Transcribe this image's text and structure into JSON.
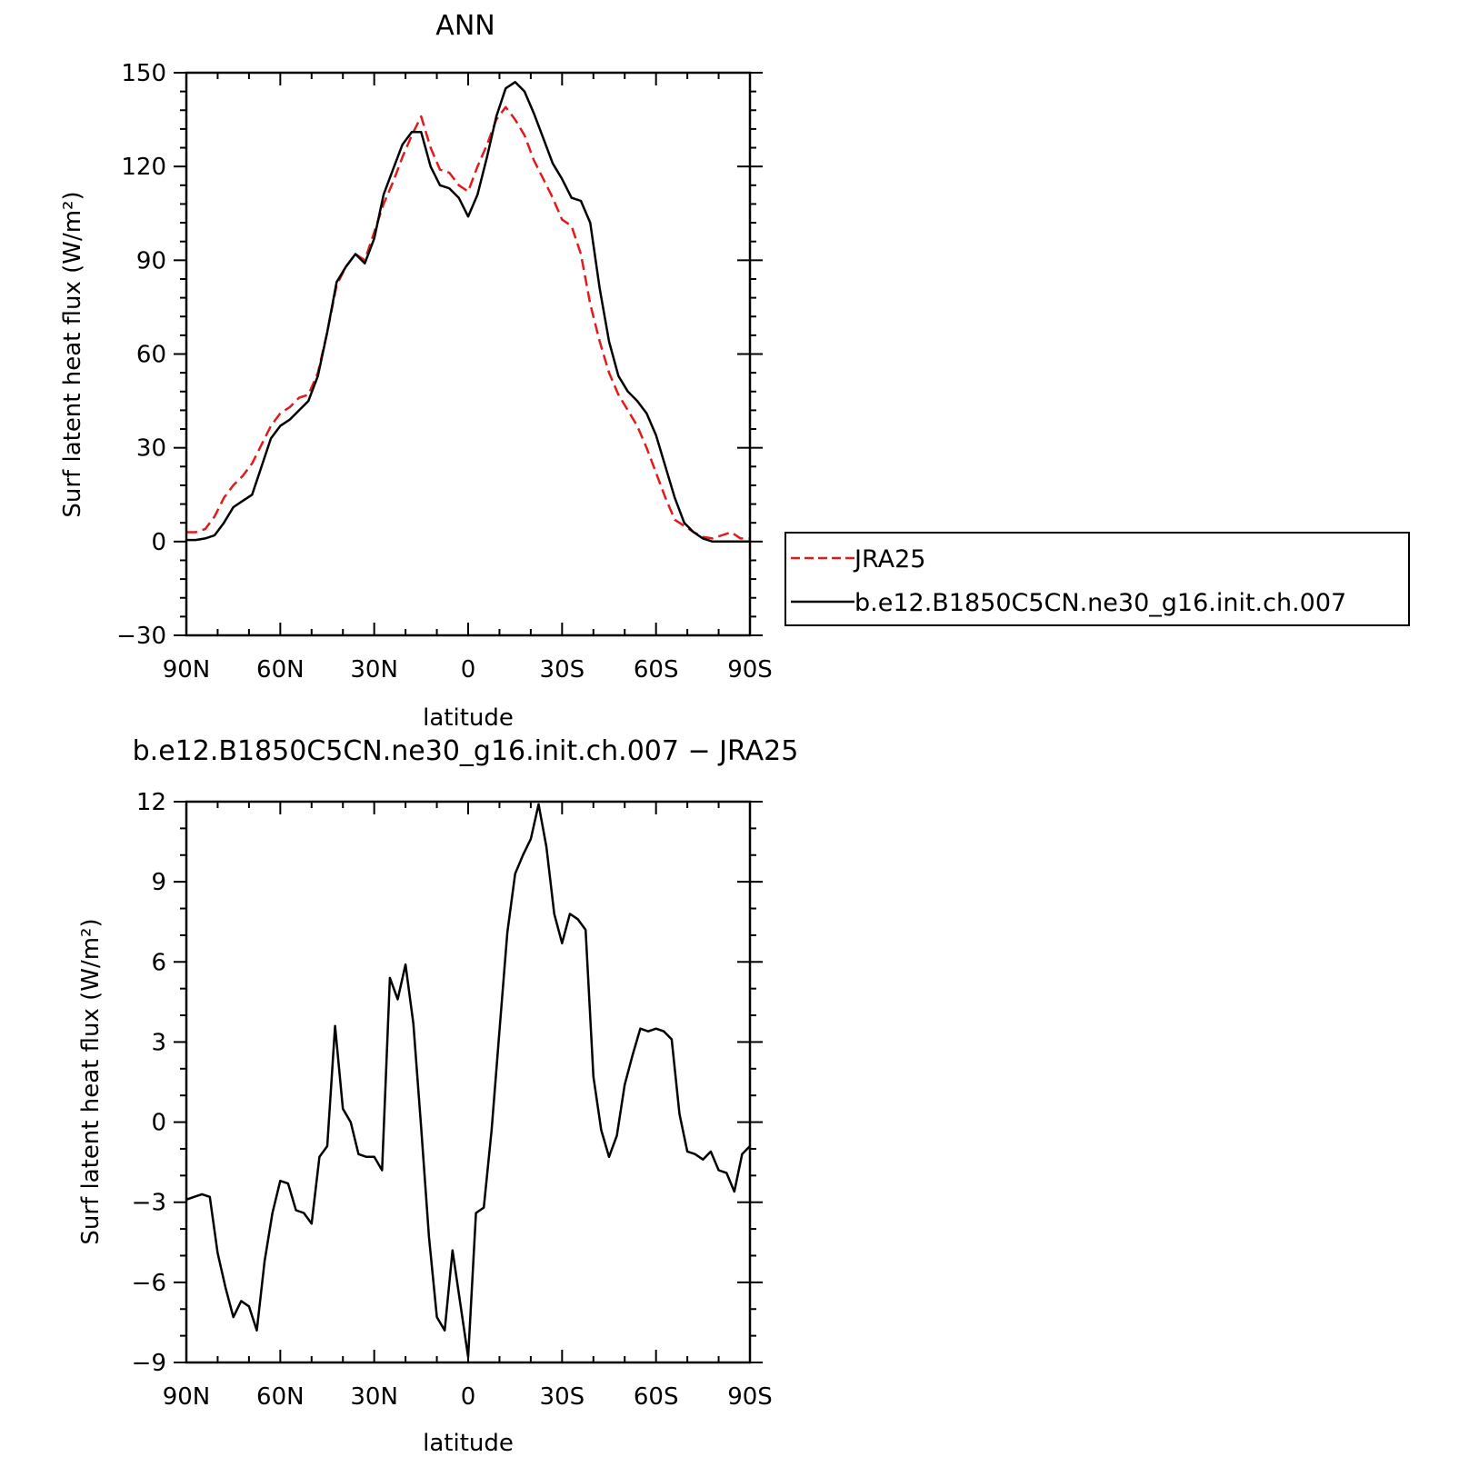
{
  "chart_data": [
    {
      "type": "line",
      "title": "ANN",
      "xlabel": "latitude",
      "ylabel": "Surf latent heat flux (W/m²)",
      "xlim": [
        90,
        -90
      ],
      "ylim": [
        -30,
        150
      ],
      "xticks": [
        90,
        60,
        30,
        0,
        -30,
        -60,
        -90
      ],
      "xtick_labels": [
        "90N",
        "60N",
        "30N",
        "0",
        "30S",
        "60S",
        "90S"
      ],
      "yticks": [
        -30,
        0,
        30,
        60,
        90,
        120,
        150
      ],
      "ytick_labels": [
        "−30",
        "0",
        "30",
        "60",
        "90",
        "120",
        "150"
      ],
      "legend": {
        "placement": "right",
        "entries": [
          "JRA25",
          "b.e12.B1850C5CN.ne30_g16.init.ch.007"
        ]
      },
      "series": [
        {
          "name": "JRA25",
          "color": "#e31a1c",
          "dash": "dashed",
          "x": [
            90,
            87,
            84,
            81,
            78,
            75,
            72,
            69,
            66,
            63,
            60,
            57,
            54,
            51,
            48,
            45,
            42,
            39,
            36,
            33,
            30,
            27,
            24,
            21,
            18,
            15,
            12,
            9,
            6,
            3,
            0,
            -3,
            -6,
            -9,
            -12,
            -15,
            -18,
            -21,
            -24,
            -27,
            -30,
            -33,
            -36,
            -39,
            -42,
            -45,
            -48,
            -51,
            -54,
            -57,
            -60,
            -63,
            -66,
            -69,
            -72,
            -75,
            -78,
            -81,
            -84,
            -87,
            -90
          ],
          "y": [
            3,
            3,
            4,
            8,
            14,
            18,
            21,
            25,
            31,
            37,
            41,
            43,
            46,
            47,
            54,
            67,
            82,
            88,
            92,
            90,
            99,
            108,
            115,
            123,
            130,
            136,
            126,
            119,
            118,
            114,
            112,
            120,
            127,
            135,
            139,
            135,
            130,
            122,
            116,
            110,
            103,
            101,
            92,
            76,
            64,
            54,
            47,
            42,
            37,
            30,
            22,
            14,
            7,
            5,
            3,
            1.5,
            1,
            2,
            3,
            1,
            1
          ]
        },
        {
          "name": "b.e12.B1850C5CN.ne30_g16.init.ch.007",
          "color": "#000000",
          "dash": "solid",
          "x": [
            90,
            87,
            84,
            81,
            78,
            75,
            72,
            69,
            66,
            63,
            60,
            57,
            54,
            51,
            48,
            45,
            42,
            39,
            36,
            33,
            30,
            27,
            24,
            21,
            18,
            15,
            12,
            9,
            6,
            3,
            0,
            -3,
            -6,
            -9,
            -12,
            -15,
            -18,
            -21,
            -24,
            -27,
            -30,
            -33,
            -36,
            -39,
            -42,
            -45,
            -48,
            -51,
            -54,
            -57,
            -60,
            -63,
            -66,
            -69,
            -72,
            -75,
            -78,
            -81,
            -84,
            -87,
            -90
          ],
          "y": [
            0.5,
            0.5,
            1,
            2,
            6,
            11,
            13,
            15,
            24,
            33,
            37,
            39,
            42,
            45,
            53,
            67,
            83,
            88,
            92,
            89,
            97,
            111,
            119,
            127,
            131,
            131,
            120,
            114,
            113,
            110,
            104,
            111,
            123,
            136,
            145,
            147,
            144,
            137,
            129,
            121,
            116,
            110,
            109,
            102,
            81,
            64,
            53,
            48,
            45,
            41,
            34,
            24,
            14,
            6,
            3,
            1,
            0,
            0,
            0,
            0,
            0
          ]
        }
      ]
    },
    {
      "type": "line",
      "title": "b.e12.B1850C5CN.ne30_g16.init.ch.007 − JRA25",
      "xlabel": "latitude",
      "ylabel": "Surf latent heat flux (W/m²)",
      "xlim": [
        90,
        -90
      ],
      "ylim": [
        -9,
        12
      ],
      "xticks": [
        90,
        60,
        30,
        0,
        -30,
        -60,
        -90
      ],
      "xtick_labels": [
        "90N",
        "60N",
        "30N",
        "0",
        "30S",
        "60S",
        "90S"
      ],
      "yticks": [
        -9,
        -6,
        -3,
        0,
        3,
        6,
        9,
        12
      ],
      "ytick_labels": [
        "−9",
        "−6",
        "−3",
        "0",
        "3",
        "6",
        "9",
        "12"
      ],
      "series": [
        {
          "color": "#000000",
          "dash": "solid",
          "x": [
            90,
            87.5,
            85,
            82.5,
            80,
            77.5,
            75,
            72.5,
            70,
            67.5,
            65,
            62.5,
            60,
            57.5,
            55,
            52.5,
            50,
            47.5,
            45,
            42.5,
            40,
            37.5,
            35,
            32.5,
            30,
            27.5,
            25,
            22.5,
            20,
            17.5,
            15,
            12.5,
            10,
            7.5,
            5,
            2.5,
            0,
            -2.5,
            -5,
            -7.5,
            -10,
            -12.5,
            -15,
            -17.5,
            -20,
            -22.5,
            -25,
            -27.5,
            -30,
            -32.5,
            -35,
            -37.5,
            -40,
            -42.5,
            -45,
            -47.5,
            -50,
            -52.5,
            -55,
            -57.5,
            -60,
            -62.5,
            -65,
            -67.5,
            -70,
            -72.5,
            -75,
            -77.5,
            -80,
            -82.5,
            -85,
            -87.5,
            -90
          ],
          "y": [
            -2.9,
            -2.8,
            -2.7,
            -2.8,
            -4.9,
            -6.2,
            -7.3,
            -6.7,
            -6.9,
            -7.8,
            -5.2,
            -3.4,
            -2.2,
            -2.3,
            -3.3,
            -3.4,
            -3.8,
            -1.3,
            -0.9,
            3.6,
            0.5,
            0,
            -1.2,
            -1.3,
            -1.3,
            -1.8,
            5.4,
            4.6,
            5.9,
            3.7,
            -0.2,
            -4.3,
            -7.3,
            -7.8,
            -4.8,
            -6.8,
            -8.8,
            -3.4,
            -3.2,
            -0.3,
            3.4,
            7.1,
            9.3,
            10.0,
            10.6,
            11.9,
            10.3,
            7.8,
            6.7,
            7.8,
            7.6,
            7.2,
            1.7,
            -0.3,
            -1.3,
            -0.5,
            1.4,
            2.5,
            3.5,
            3.4,
            3.5,
            3.4,
            3.1,
            0.3,
            -1.1,
            -1.2,
            -1.4,
            -1.1,
            -1.8,
            -1.9,
            -2.6,
            -1.2,
            -0.9
          ]
        }
      ]
    }
  ]
}
